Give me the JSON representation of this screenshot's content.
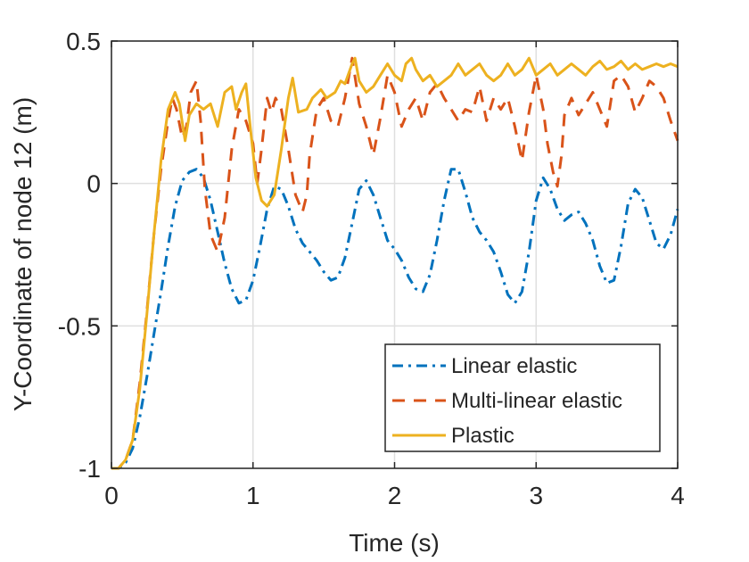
{
  "chart_data": {
    "type": "line",
    "title": "",
    "xlabel": "Time (s)",
    "ylabel": "Y-Coordinate of node 12 (m)",
    "xlim": [
      0,
      4
    ],
    "ylim": [
      -1,
      0.5
    ],
    "xticks": [
      0,
      1,
      2,
      3,
      4
    ],
    "xtick_labels": [
      "0",
      "1",
      "2",
      "3",
      "4"
    ],
    "yticks": [
      -1,
      -0.5,
      0,
      0.5
    ],
    "ytick_labels": [
      "-1",
      "-0.5",
      "0",
      "0.5"
    ],
    "grid": true,
    "legend_position": "bottom-right",
    "series": [
      {
        "name": "Linear elastic",
        "color": "#0072BD",
        "style": "dashdot",
        "points": [
          [
            0,
            -1
          ],
          [
            0.05,
            -1.0
          ],
          [
            0.1,
            -0.98
          ],
          [
            0.15,
            -0.93
          ],
          [
            0.2,
            -0.82
          ],
          [
            0.25,
            -0.68
          ],
          [
            0.3,
            -0.53
          ],
          [
            0.35,
            -0.38
          ],
          [
            0.4,
            -0.22
          ],
          [
            0.45,
            -0.08
          ],
          [
            0.5,
            0.01
          ],
          [
            0.55,
            0.04
          ],
          [
            0.6,
            0.05
          ],
          [
            0.65,
            0.02
          ],
          [
            0.7,
            -0.06
          ],
          [
            0.75,
            -0.17
          ],
          [
            0.8,
            -0.28
          ],
          [
            0.85,
            -0.37
          ],
          [
            0.9,
            -0.42
          ],
          [
            0.95,
            -0.41
          ],
          [
            1.0,
            -0.34
          ],
          [
            1.05,
            -0.22
          ],
          [
            1.1,
            -0.09
          ],
          [
            1.15,
            -0.01
          ],
          [
            1.2,
            -0.02
          ],
          [
            1.25,
            -0.08
          ],
          [
            1.3,
            -0.16
          ],
          [
            1.35,
            -0.21
          ],
          [
            1.4,
            -0.24
          ],
          [
            1.45,
            -0.27
          ],
          [
            1.5,
            -0.31
          ],
          [
            1.55,
            -0.34
          ],
          [
            1.6,
            -0.33
          ],
          [
            1.65,
            -0.26
          ],
          [
            1.7,
            -0.14
          ],
          [
            1.75,
            -0.02
          ],
          [
            1.8,
            0.01
          ],
          [
            1.85,
            -0.04
          ],
          [
            1.9,
            -0.12
          ],
          [
            1.95,
            -0.2
          ],
          [
            2.0,
            -0.23
          ],
          [
            2.05,
            -0.27
          ],
          [
            2.1,
            -0.33
          ],
          [
            2.15,
            -0.37
          ],
          [
            2.2,
            -0.38
          ],
          [
            2.25,
            -0.32
          ],
          [
            2.3,
            -0.2
          ],
          [
            2.35,
            -0.06
          ],
          [
            2.4,
            0.05
          ],
          [
            2.45,
            0.05
          ],
          [
            2.5,
            -0.03
          ],
          [
            2.55,
            -0.12
          ],
          [
            2.6,
            -0.17
          ],
          [
            2.65,
            -0.2
          ],
          [
            2.7,
            -0.24
          ],
          [
            2.75,
            -0.31
          ],
          [
            2.8,
            -0.39
          ],
          [
            2.85,
            -0.42
          ],
          [
            2.9,
            -0.38
          ],
          [
            2.95,
            -0.24
          ],
          [
            3.0,
            -0.06
          ],
          [
            3.05,
            0.02
          ],
          [
            3.1,
            -0.02
          ],
          [
            3.15,
            -0.09
          ],
          [
            3.2,
            -0.13
          ],
          [
            3.25,
            -0.11
          ],
          [
            3.3,
            -0.1
          ],
          [
            3.35,
            -0.14
          ],
          [
            3.4,
            -0.2
          ],
          [
            3.45,
            -0.29
          ],
          [
            3.5,
            -0.35
          ],
          [
            3.55,
            -0.34
          ],
          [
            3.6,
            -0.22
          ],
          [
            3.65,
            -0.07
          ],
          [
            3.7,
            -0.02
          ],
          [
            3.75,
            -0.05
          ],
          [
            3.8,
            -0.13
          ],
          [
            3.85,
            -0.21
          ],
          [
            3.9,
            -0.23
          ],
          [
            3.95,
            -0.18
          ],
          [
            4.0,
            -0.09
          ]
        ]
      },
      {
        "name": "Multi-linear elastic",
        "color": "#D95319",
        "style": "dashed",
        "points": [
          [
            0,
            -1
          ],
          [
            0.05,
            -1.0
          ],
          [
            0.1,
            -0.97
          ],
          [
            0.15,
            -0.9
          ],
          [
            0.2,
            -0.7
          ],
          [
            0.25,
            -0.45
          ],
          [
            0.3,
            -0.18
          ],
          [
            0.35,
            0.05
          ],
          [
            0.4,
            0.22
          ],
          [
            0.43,
            0.3
          ],
          [
            0.46,
            0.26
          ],
          [
            0.5,
            0.16
          ],
          [
            0.53,
            0.2
          ],
          [
            0.56,
            0.32
          ],
          [
            0.6,
            0.36
          ],
          [
            0.63,
            0.22
          ],
          [
            0.66,
            -0.02
          ],
          [
            0.7,
            -0.18
          ],
          [
            0.75,
            -0.24
          ],
          [
            0.8,
            -0.12
          ],
          [
            0.85,
            0.12
          ],
          [
            0.9,
            0.26
          ],
          [
            0.95,
            0.22
          ],
          [
            1.0,
            0.14
          ],
          [
            1.03,
            0.0
          ],
          [
            1.06,
            0.12
          ],
          [
            1.1,
            0.3
          ],
          [
            1.13,
            0.25
          ],
          [
            1.16,
            0.3
          ],
          [
            1.2,
            0.26
          ],
          [
            1.25,
            0.12
          ],
          [
            1.3,
            -0.04
          ],
          [
            1.35,
            -0.1
          ],
          [
            1.38,
            -0.04
          ],
          [
            1.4,
            0.1
          ],
          [
            1.45,
            0.26
          ],
          [
            1.5,
            0.3
          ],
          [
            1.55,
            0.22
          ],
          [
            1.6,
            0.2
          ],
          [
            1.65,
            0.3
          ],
          [
            1.7,
            0.44
          ],
          [
            1.75,
            0.28
          ],
          [
            1.8,
            0.2
          ],
          [
            1.85,
            0.1
          ],
          [
            1.9,
            0.23
          ],
          [
            1.95,
            0.38
          ],
          [
            2.0,
            0.32
          ],
          [
            2.05,
            0.2
          ],
          [
            2.1,
            0.26
          ],
          [
            2.15,
            0.3
          ],
          [
            2.2,
            0.22
          ],
          [
            2.25,
            0.32
          ],
          [
            2.3,
            0.35
          ],
          [
            2.35,
            0.3
          ],
          [
            2.4,
            0.26
          ],
          [
            2.45,
            0.22
          ],
          [
            2.5,
            0.26
          ],
          [
            2.55,
            0.25
          ],
          [
            2.6,
            0.34
          ],
          [
            2.65,
            0.22
          ],
          [
            2.7,
            0.3
          ],
          [
            2.75,
            0.26
          ],
          [
            2.8,
            0.3
          ],
          [
            2.85,
            0.2
          ],
          [
            2.9,
            0.08
          ],
          [
            2.95,
            0.25
          ],
          [
            3.0,
            0.38
          ],
          [
            3.05,
            0.26
          ],
          [
            3.08,
            0.14
          ],
          [
            3.12,
            0.04
          ],
          [
            3.15,
            -0.01
          ],
          [
            3.18,
            0.1
          ],
          [
            3.2,
            0.24
          ],
          [
            3.25,
            0.3
          ],
          [
            3.3,
            0.24
          ],
          [
            3.35,
            0.28
          ],
          [
            3.4,
            0.32
          ],
          [
            3.45,
            0.26
          ],
          [
            3.5,
            0.2
          ],
          [
            3.55,
            0.36
          ],
          [
            3.6,
            0.38
          ],
          [
            3.65,
            0.34
          ],
          [
            3.7,
            0.25
          ],
          [
            3.75,
            0.3
          ],
          [
            3.8,
            0.36
          ],
          [
            3.85,
            0.34
          ],
          [
            3.9,
            0.3
          ],
          [
            3.95,
            0.22
          ],
          [
            4.0,
            0.15
          ]
        ]
      },
      {
        "name": "Plastic",
        "color": "#EDB120",
        "style": "solid",
        "points": [
          [
            0,
            -1
          ],
          [
            0.05,
            -1.0
          ],
          [
            0.1,
            -0.97
          ],
          [
            0.15,
            -0.9
          ],
          [
            0.2,
            -0.72
          ],
          [
            0.25,
            -0.46
          ],
          [
            0.3,
            -0.18
          ],
          [
            0.35,
            0.08
          ],
          [
            0.4,
            0.26
          ],
          [
            0.45,
            0.32
          ],
          [
            0.48,
            0.28
          ],
          [
            0.52,
            0.15
          ],
          [
            0.55,
            0.24
          ],
          [
            0.6,
            0.28
          ],
          [
            0.65,
            0.26
          ],
          [
            0.7,
            0.28
          ],
          [
            0.75,
            0.2
          ],
          [
            0.8,
            0.32
          ],
          [
            0.85,
            0.34
          ],
          [
            0.88,
            0.26
          ],
          [
            0.92,
            0.32
          ],
          [
            0.95,
            0.35
          ],
          [
            0.98,
            0.2
          ],
          [
            1.02,
            0.02
          ],
          [
            1.06,
            -0.06
          ],
          [
            1.1,
            -0.08
          ],
          [
            1.15,
            -0.04
          ],
          [
            1.2,
            0.12
          ],
          [
            1.25,
            0.3
          ],
          [
            1.28,
            0.37
          ],
          [
            1.32,
            0.25
          ],
          [
            1.38,
            0.26
          ],
          [
            1.42,
            0.3
          ],
          [
            1.48,
            0.33
          ],
          [
            1.52,
            0.3
          ],
          [
            1.58,
            0.32
          ],
          [
            1.62,
            0.36
          ],
          [
            1.65,
            0.35
          ],
          [
            1.7,
            0.42
          ],
          [
            1.72,
            0.44
          ],
          [
            1.75,
            0.36
          ],
          [
            1.8,
            0.32
          ],
          [
            1.85,
            0.34
          ],
          [
            1.9,
            0.38
          ],
          [
            1.95,
            0.42
          ],
          [
            2.0,
            0.38
          ],
          [
            2.05,
            0.36
          ],
          [
            2.08,
            0.42
          ],
          [
            2.12,
            0.44
          ],
          [
            2.15,
            0.4
          ],
          [
            2.2,
            0.36
          ],
          [
            2.25,
            0.38
          ],
          [
            2.3,
            0.34
          ],
          [
            2.35,
            0.36
          ],
          [
            2.4,
            0.38
          ],
          [
            2.45,
            0.42
          ],
          [
            2.5,
            0.38
          ],
          [
            2.55,
            0.4
          ],
          [
            2.6,
            0.42
          ],
          [
            2.65,
            0.38
          ],
          [
            2.7,
            0.36
          ],
          [
            2.75,
            0.38
          ],
          [
            2.8,
            0.42
          ],
          [
            2.85,
            0.38
          ],
          [
            2.9,
            0.4
          ],
          [
            2.95,
            0.44
          ],
          [
            3.0,
            0.38
          ],
          [
            3.05,
            0.4
          ],
          [
            3.1,
            0.42
          ],
          [
            3.15,
            0.38
          ],
          [
            3.2,
            0.4
          ],
          [
            3.25,
            0.42
          ],
          [
            3.3,
            0.4
          ],
          [
            3.35,
            0.38
          ],
          [
            3.4,
            0.41
          ],
          [
            3.45,
            0.43
          ],
          [
            3.5,
            0.4
          ],
          [
            3.55,
            0.41
          ],
          [
            3.6,
            0.43
          ],
          [
            3.65,
            0.4
          ],
          [
            3.7,
            0.42
          ],
          [
            3.75,
            0.4
          ],
          [
            3.8,
            0.41
          ],
          [
            3.85,
            0.42
          ],
          [
            3.9,
            0.41
          ],
          [
            3.95,
            0.42
          ],
          [
            4.0,
            0.41
          ]
        ]
      }
    ]
  }
}
